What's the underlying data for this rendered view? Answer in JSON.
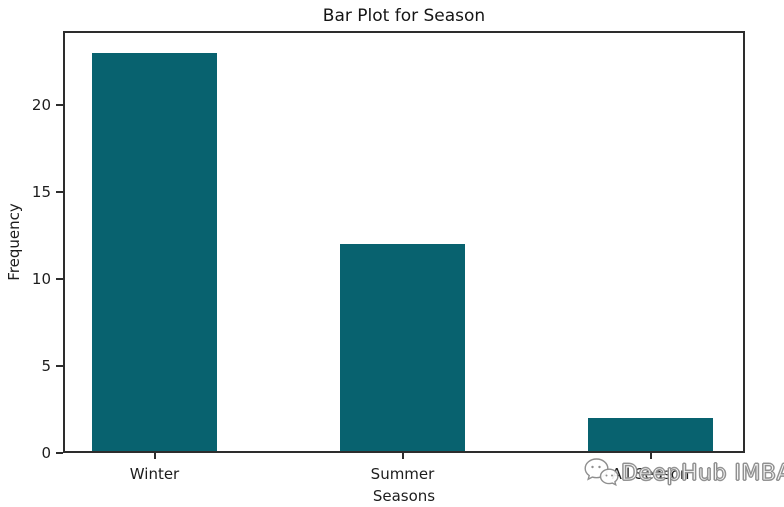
{
  "chart_data": {
    "type": "bar",
    "title": "Bar Plot for Season",
    "categories": [
      "Winter",
      "Summer",
      "All Season"
    ],
    "values": [
      23,
      12,
      2
    ],
    "xlabel": "Seasons",
    "ylabel": "Frequency",
    "yticks": [
      0,
      5,
      10,
      15,
      20
    ],
    "ylim": [
      0,
      24.25
    ],
    "bar_color": "#08626F",
    "grid": false,
    "legend": false
  },
  "watermark": {
    "icon": "chat-bubbles-icon",
    "text": "DeepHub IMBA"
  },
  "colors": {
    "background": "#ffffff",
    "axis": "#2d2d2d",
    "text": "#1d1d1d",
    "bar": "#08626F",
    "watermark_outline": "#8f8f8f"
  }
}
